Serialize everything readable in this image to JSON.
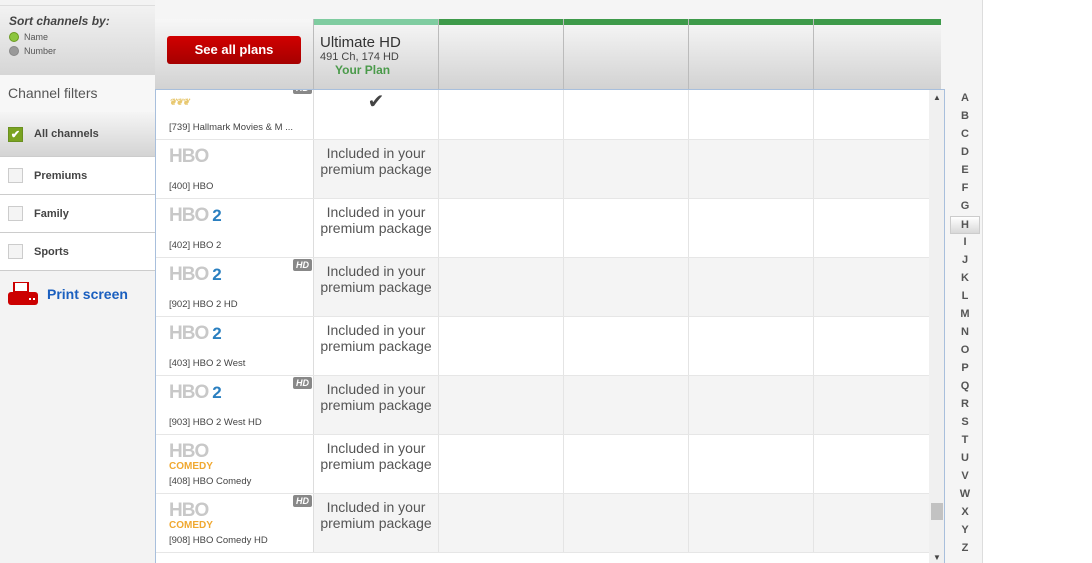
{
  "sidebar": {
    "sort_title": "Sort channels by:",
    "sort_options": [
      {
        "label": "Name",
        "selected": true
      },
      {
        "label": "Number",
        "selected": false
      }
    ],
    "filters_title": "Channel filters",
    "filters": [
      {
        "label": "All channels",
        "checked": true
      },
      {
        "label": "Premiums",
        "checked": false
      },
      {
        "label": "Family",
        "checked": false
      },
      {
        "label": "Sports",
        "checked": false
      }
    ],
    "print_label": "Print screen"
  },
  "header": {
    "see_all_plans": "See all plans",
    "plan": {
      "name": "Ultimate HD",
      "channels": "491 Ch, 174 HD",
      "your_plan": "Your Plan"
    }
  },
  "colors": {
    "accent_red": "#c00000",
    "your_plan_green": "#4a9a4a",
    "bar_light": "#7fcca0",
    "bar_dark": "#3e9a4a"
  },
  "hd_badge": "HD",
  "rows": [
    {
      "channel": "[739] Hallmark Movies & M ...",
      "logo": "Hallmark Movies & Mysteries",
      "hd": true,
      "status": "check"
    },
    {
      "channel": "[400] HBO",
      "logo": "HBO",
      "num": "",
      "hd": false,
      "status": "Included in your premium package"
    },
    {
      "channel": "[402] HBO 2",
      "logo": "HBO",
      "num": "2",
      "hd": false,
      "status": "Included in your premium package"
    },
    {
      "channel": "[902] HBO 2 HD",
      "logo": "HBO",
      "num": "2",
      "hd": true,
      "status": "Included in your premium package"
    },
    {
      "channel": "[403] HBO 2 West",
      "logo": "HBO",
      "num": "2",
      "hd": false,
      "status": "Included in your premium package"
    },
    {
      "channel": "[903] HBO 2 West HD",
      "logo": "HBO",
      "num": "2",
      "hd": true,
      "status": "Included in your premium package"
    },
    {
      "channel": "[408] HBO Comedy",
      "logo": "HBO",
      "sub": "COMEDY",
      "hd": false,
      "status": "Included in your premium package"
    },
    {
      "channel": "[908] HBO Comedy HD",
      "logo": "HBO",
      "sub": "COMEDY",
      "hd": true,
      "status": "Included in your premium package"
    }
  ],
  "alphabet": [
    "A",
    "B",
    "C",
    "D",
    "E",
    "F",
    "G",
    "H",
    "I",
    "J",
    "K",
    "L",
    "M",
    "N",
    "O",
    "P",
    "Q",
    "R",
    "S",
    "T",
    "U",
    "V",
    "W",
    "X",
    "Y",
    "Z"
  ],
  "alphabet_selected": "H"
}
